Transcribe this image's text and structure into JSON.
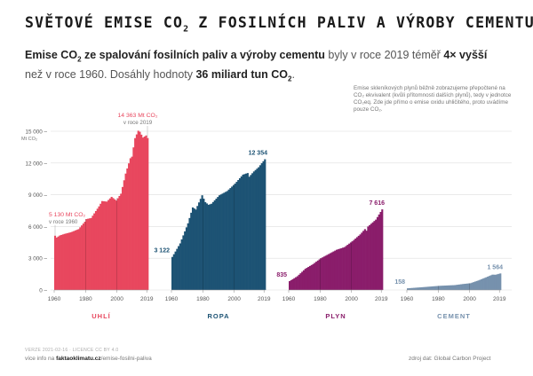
{
  "title": {
    "main": "SVĚTOVÉ EMISE CO",
    "sub": "2",
    "rest": " Z FOSILNÍCH PALIV A VÝROBY CEMENTU"
  },
  "subtitle": {
    "p1": "Emise CO",
    "p1_sub": "2",
    "p1_bold": " ze spalování fosilních paliv a výroby cementu",
    "p2": " byly v roce 2019 téměř ",
    "p2_bold": "4× vyšší",
    "p3": " než v roce 1960. Dosáhly hodnoty ",
    "p3_bold": "36 miliard tun CO",
    "p3_sub": "2",
    "p3_end": "."
  },
  "note": "Emise skleníkových plynů běžně zobrazujeme přepočtené na CO₂ ekvivalent (kvůli přítomnosti dalších plynů), tedy v jednotce CO₂eq. Zde jde přímo o emise oxidu uhličitého, proto uvádíme pouze CO₂.",
  "footer": {
    "version": "VERZE 2021-02-16 · LICENCE CC BY 4.0",
    "more_prefix": "více info na ",
    "more_site": "faktaoklimatu.cz",
    "more_path": "/emise-fosilni-paliva",
    "source": "zdroj dat: Global Carbon Project"
  },
  "chart_data": {
    "type": "bar",
    "unit": "Mt CO₂",
    "ylim": [
      0,
      15000
    ],
    "yticks": [
      0,
      3000,
      6000,
      9000,
      12000,
      15000
    ],
    "ytick_labels": [
      "0 –",
      "3 000 –",
      "6 000 –",
      "9 000 –",
      "12 000 –",
      "15 000 –"
    ],
    "y_unit_label": "Mt CO₂",
    "xticks": [
      1960,
      1980,
      2000,
      2019
    ],
    "series": [
      {
        "name": "UHLÍ",
        "color": "#e8475e",
        "keypoints": [
          [
            1960,
            5130
          ],
          [
            1961,
            4950
          ],
          [
            1963,
            5150
          ],
          [
            1966,
            5300
          ],
          [
            1970,
            5450
          ],
          [
            1975,
            5750
          ],
          [
            1979,
            6450
          ],
          [
            1980,
            6700
          ],
          [
            1983,
            6800
          ],
          [
            1988,
            7900
          ],
          [
            1990,
            8400
          ],
          [
            1993,
            8350
          ],
          [
            1996,
            8800
          ],
          [
            1999,
            8450
          ],
          [
            2002,
            9100
          ],
          [
            2005,
            11000
          ],
          [
            2008,
            12450
          ],
          [
            2009,
            12600
          ],
          [
            2011,
            14350
          ],
          [
            2013,
            15050
          ],
          [
            2014,
            14950
          ],
          [
            2016,
            14400
          ],
          [
            2018,
            14600
          ],
          [
            2019,
            14363
          ]
        ],
        "labels": [
          {
            "year": 1960,
            "value_text": "5 130 Mt CO₂",
            "note": "v roce 1960"
          },
          {
            "year": 2019,
            "value_text": "14 363 Mt CO₂",
            "note": "v roce 2019"
          }
        ]
      },
      {
        "name": "ROPA",
        "color": "#1d5374",
        "keypoints": [
          [
            1960,
            3122
          ],
          [
            1965,
            4400
          ],
          [
            1970,
            6300
          ],
          [
            1973,
            7800
          ],
          [
            1975,
            7600
          ],
          [
            1979,
            8950
          ],
          [
            1981,
            8300
          ],
          [
            1983,
            8050
          ],
          [
            1985,
            8150
          ],
          [
            1990,
            8950
          ],
          [
            1995,
            9350
          ],
          [
            2000,
            10050
          ],
          [
            2005,
            10900
          ],
          [
            2008,
            11050
          ],
          [
            2009,
            10700
          ],
          [
            2012,
            11200
          ],
          [
            2015,
            11600
          ],
          [
            2019,
            12354
          ]
        ],
        "labels": [
          {
            "year": 1960,
            "value_text": "3 122"
          },
          {
            "year": 2019,
            "value_text": "12 354"
          }
        ]
      },
      {
        "name": "PLYN",
        "color": "#8a1d6b",
        "keypoints": [
          [
            1960,
            835
          ],
          [
            1965,
            1300
          ],
          [
            1970,
            2000
          ],
          [
            1975,
            2450
          ],
          [
            1980,
            3000
          ],
          [
            1985,
            3400
          ],
          [
            1990,
            3800
          ],
          [
            1995,
            4050
          ],
          [
            2000,
            4600
          ],
          [
            2005,
            5250
          ],
          [
            2008,
            5750
          ],
          [
            2009,
            5600
          ],
          [
            2010,
            6000
          ],
          [
            2015,
            6650
          ],
          [
            2019,
            7616
          ]
        ],
        "labels": [
          {
            "year": 1960,
            "value_text": "835"
          },
          {
            "year": 2019,
            "value_text": "7 616"
          }
        ]
      },
      {
        "name": "CEMENT",
        "color": "#7691ad",
        "keypoints": [
          [
            1960,
            158
          ],
          [
            1970,
            270
          ],
          [
            1980,
            390
          ],
          [
            1990,
            460
          ],
          [
            1995,
            560
          ],
          [
            2000,
            640
          ],
          [
            2005,
            900
          ],
          [
            2010,
            1200
          ],
          [
            2014,
            1450
          ],
          [
            2016,
            1440
          ],
          [
            2019,
            1564
          ]
        ],
        "labels": [
          {
            "year": 1960,
            "value_text": "158"
          },
          {
            "year": 2019,
            "value_text": "1 564"
          }
        ]
      }
    ]
  }
}
